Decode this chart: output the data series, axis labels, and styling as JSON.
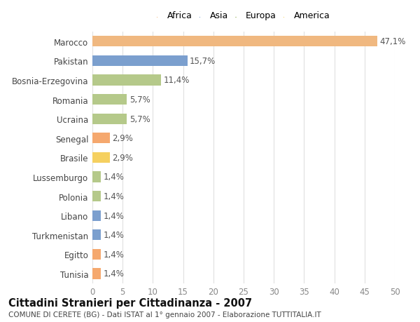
{
  "categories": [
    "Tunisia",
    "Egitto",
    "Turkmenistan",
    "Libano",
    "Polonia",
    "Lussemburgo",
    "Brasile",
    "Senegal",
    "Ucraina",
    "Romania",
    "Bosnia-Erzegovina",
    "Pakistan",
    "Marocco"
  ],
  "values": [
    1.4,
    1.4,
    1.4,
    1.4,
    1.4,
    1.4,
    2.9,
    2.9,
    5.7,
    5.7,
    11.4,
    15.7,
    47.1
  ],
  "labels": [
    "1,4%",
    "1,4%",
    "1,4%",
    "1,4%",
    "1,4%",
    "1,4%",
    "2,9%",
    "2,9%",
    "5,7%",
    "5,7%",
    "11,4%",
    "15,7%",
    "47,1%"
  ],
  "colors": [
    "#f5a86e",
    "#f5a86e",
    "#7b9fce",
    "#7b9fce",
    "#b5c98a",
    "#b5c98a",
    "#f5d060",
    "#f5a86e",
    "#b5c98a",
    "#b5c98a",
    "#b5c98a",
    "#7b9fce",
    "#f0b880"
  ],
  "continent": [
    "Africa",
    "Africa",
    "Asia",
    "Asia",
    "Europa",
    "Europa",
    "America",
    "Africa",
    "Europa",
    "Europa",
    "Europa",
    "Asia",
    "Africa"
  ],
  "legend_labels": [
    "Africa",
    "Asia",
    "Europa",
    "America"
  ],
  "legend_colors": [
    "#f0b880",
    "#7b9fce",
    "#b5c98a",
    "#f5d060"
  ],
  "title": "Cittadini Stranieri per Cittadinanza - 2007",
  "subtitle": "COMUNE DI CERETE (BG) - Dati ISTAT al 1° gennaio 2007 - Elaborazione TUTTITALIA.IT",
  "xlim": [
    0,
    50
  ],
  "xticks": [
    0,
    5,
    10,
    15,
    20,
    25,
    30,
    35,
    40,
    45,
    50
  ],
  "background_color": "#ffffff",
  "grid_color": "#e0e0e0",
  "bar_height": 0.55,
  "label_fontsize": 8.5,
  "title_fontsize": 10.5,
  "subtitle_fontsize": 7.5,
  "tick_fontsize": 8.5,
  "legend_fontsize": 9
}
